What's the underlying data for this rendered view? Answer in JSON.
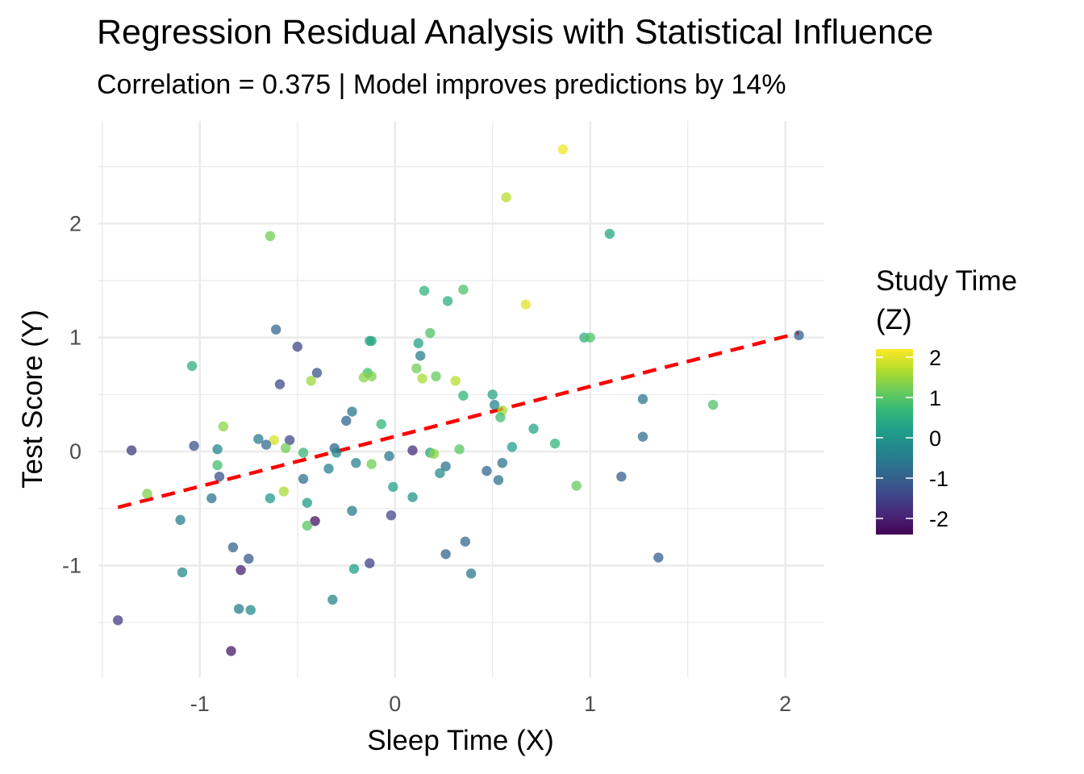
{
  "chart_data": {
    "type": "scatter",
    "title": "Regression Residual Analysis with Statistical Influence",
    "subtitle": "Correlation = 0.375 | Model improves predictions by 14%",
    "xlabel": "Sleep Time (X)",
    "ylabel": "Test Score (Y)",
    "xlim": [
      -1.52,
      2.2
    ],
    "ylim": [
      -1.98,
      2.9
    ],
    "x_ticks": [
      -1,
      0,
      1,
      2
    ],
    "x_tick_labels": [
      "-1",
      "0",
      "1",
      "2"
    ],
    "y_ticks": [
      -1,
      0,
      1,
      2
    ],
    "y_tick_labels": [
      "-1",
      "0",
      "1",
      "2"
    ],
    "grid": true,
    "legend": {
      "title_lines": [
        "Study Time",
        "(Z)"
      ],
      "placement": "right",
      "type": "colorbar",
      "range": [
        -2.4,
        2.2
      ],
      "ticks": [
        2,
        1,
        0,
        -1,
        -2
      ],
      "tick_labels": [
        "2",
        "1",
        "0",
        "-1",
        "-2"
      ],
      "colors": [
        "#440154",
        "#482878",
        "#3e4a89",
        "#31688e",
        "#26828e",
        "#1f9e89",
        "#35b779",
        "#6dcd59",
        "#b4de2c",
        "#fde725"
      ]
    },
    "regression_line": {
      "color": "#ff0000",
      "style": "dashed",
      "x": [
        -1.42,
        2.07
      ],
      "y": [
        -0.49,
        1.04
      ]
    },
    "points": [
      {
        "x": 0.86,
        "y": 2.65,
        "z": 2.1
      },
      {
        "x": 0.57,
        "y": 2.23,
        "z": 1.7
      },
      {
        "x": 1.1,
        "y": 1.91,
        "z": 0.3
      },
      {
        "x": -0.64,
        "y": 1.89,
        "z": 1.2
      },
      {
        "x": 0.15,
        "y": 1.41,
        "z": 0.6
      },
      {
        "x": 0.35,
        "y": 1.42,
        "z": 0.9
      },
      {
        "x": 0.27,
        "y": 1.32,
        "z": 0.5
      },
      {
        "x": 0.67,
        "y": 1.29,
        "z": 2.0
      },
      {
        "x": -0.61,
        "y": 1.07,
        "z": -0.9
      },
      {
        "x": 0.18,
        "y": 1.04,
        "z": 0.9
      },
      {
        "x": 0.97,
        "y": 1.0,
        "z": 0.5
      },
      {
        "x": 1.0,
        "y": 1.0,
        "z": 0.9
      },
      {
        "x": -0.12,
        "y": 0.97,
        "z": 0.4
      },
      {
        "x": -0.13,
        "y": 0.97,
        "z": 0.3
      },
      {
        "x": 0.12,
        "y": 0.95,
        "z": 0.2
      },
      {
        "x": 2.07,
        "y": 1.02,
        "z": -1.0
      },
      {
        "x": -0.5,
        "y": 0.92,
        "z": -1.4
      },
      {
        "x": 0.13,
        "y": 0.84,
        "z": -0.4
      },
      {
        "x": -1.04,
        "y": 0.75,
        "z": 0.5
      },
      {
        "x": 0.11,
        "y": 0.73,
        "z": 1.2
      },
      {
        "x": -0.4,
        "y": 0.69,
        "z": -1.2
      },
      {
        "x": -0.14,
        "y": 0.69,
        "z": 0.8
      },
      {
        "x": 0.21,
        "y": 0.66,
        "z": 1.1
      },
      {
        "x": -0.12,
        "y": 0.66,
        "z": 1.3
      },
      {
        "x": -0.16,
        "y": 0.65,
        "z": 1.4
      },
      {
        "x": 0.14,
        "y": 0.64,
        "z": 1.6
      },
      {
        "x": -0.43,
        "y": 0.62,
        "z": 1.5
      },
      {
        "x": 0.31,
        "y": 0.62,
        "z": 1.7
      },
      {
        "x": -0.59,
        "y": 0.59,
        "z": -1.4
      },
      {
        "x": 0.5,
        "y": 0.5,
        "z": 0.3
      },
      {
        "x": 0.35,
        "y": 0.49,
        "z": 0.6
      },
      {
        "x": 1.27,
        "y": 0.46,
        "z": -0.6
      },
      {
        "x": 1.63,
        "y": 0.41,
        "z": 0.9
      },
      {
        "x": 0.51,
        "y": 0.41,
        "z": -0.3
      },
      {
        "x": 0.55,
        "y": 0.36,
        "z": 1.6
      },
      {
        "x": -0.22,
        "y": 0.35,
        "z": -0.6
      },
      {
        "x": 0.54,
        "y": 0.3,
        "z": 0.8
      },
      {
        "x": -0.25,
        "y": 0.27,
        "z": -0.9
      },
      {
        "x": -0.07,
        "y": 0.24,
        "z": 0.6
      },
      {
        "x": -0.88,
        "y": 0.22,
        "z": 1.4
      },
      {
        "x": 0.71,
        "y": 0.2,
        "z": 0.3
      },
      {
        "x": 1.27,
        "y": 0.13,
        "z": -0.7
      },
      {
        "x": -0.7,
        "y": 0.11,
        "z": -0.5
      },
      {
        "x": -0.62,
        "y": 0.1,
        "z": 1.9
      },
      {
        "x": -0.54,
        "y": 0.1,
        "z": -1.4
      },
      {
        "x": 0.82,
        "y": 0.07,
        "z": 0.6
      },
      {
        "x": -0.66,
        "y": 0.06,
        "z": -0.8
      },
      {
        "x": -1.03,
        "y": 0.05,
        "z": -1.2
      },
      {
        "x": 0.6,
        "y": 0.04,
        "z": 0.2
      },
      {
        "x": -0.31,
        "y": 0.03,
        "z": -0.9
      },
      {
        "x": -0.56,
        "y": 0.03,
        "z": 1.2
      },
      {
        "x": -0.91,
        "y": 0.02,
        "z": -0.3
      },
      {
        "x": 0.33,
        "y": 0.02,
        "z": 1.0
      },
      {
        "x": -1.35,
        "y": 0.01,
        "z": -1.6
      },
      {
        "x": 0.09,
        "y": 0.01,
        "z": -1.8
      },
      {
        "x": -0.47,
        "y": -0.01,
        "z": 0.7
      },
      {
        "x": -0.3,
        "y": -0.01,
        "z": -0.3
      },
      {
        "x": 0.18,
        "y": -0.01,
        "z": 0.3
      },
      {
        "x": 0.2,
        "y": -0.02,
        "z": 1.4
      },
      {
        "x": -0.03,
        "y": -0.04,
        "z": -0.6
      },
      {
        "x": 0.55,
        "y": -0.1,
        "z": -0.6
      },
      {
        "x": -0.2,
        "y": -0.1,
        "z": -0.4
      },
      {
        "x": -0.12,
        "y": -0.11,
        "z": 1.2
      },
      {
        "x": -0.91,
        "y": -0.12,
        "z": 0.8
      },
      {
        "x": 0.26,
        "y": -0.13,
        "z": -0.6
      },
      {
        "x": -0.34,
        "y": -0.15,
        "z": -0.4
      },
      {
        "x": 0.47,
        "y": -0.17,
        "z": -0.9
      },
      {
        "x": 0.23,
        "y": -0.19,
        "z": -0.2
      },
      {
        "x": 1.16,
        "y": -0.22,
        "z": -1.0
      },
      {
        "x": -0.9,
        "y": -0.22,
        "z": -1.3
      },
      {
        "x": -0.47,
        "y": -0.24,
        "z": -0.7
      },
      {
        "x": 0.53,
        "y": -0.25,
        "z": -0.7
      },
      {
        "x": 0.93,
        "y": -0.3,
        "z": 1.1
      },
      {
        "x": -0.01,
        "y": -0.31,
        "z": 0.2
      },
      {
        "x": -0.57,
        "y": -0.35,
        "z": 1.6
      },
      {
        "x": -1.27,
        "y": -0.37,
        "z": 1.3
      },
      {
        "x": 0.09,
        "y": -0.4,
        "z": 0.0
      },
      {
        "x": -0.94,
        "y": -0.41,
        "z": -0.6
      },
      {
        "x": -0.64,
        "y": -0.41,
        "z": 0.1
      },
      {
        "x": -0.45,
        "y": -0.45,
        "z": 0.1
      },
      {
        "x": -0.22,
        "y": -0.52,
        "z": -0.5
      },
      {
        "x": -0.02,
        "y": -0.56,
        "z": -1.4
      },
      {
        "x": -1.1,
        "y": -0.6,
        "z": -0.5
      },
      {
        "x": -0.41,
        "y": -0.61,
        "z": -2.2
      },
      {
        "x": -0.45,
        "y": -0.65,
        "z": 1.0
      },
      {
        "x": 0.36,
        "y": -0.79,
        "z": -0.8
      },
      {
        "x": -0.83,
        "y": -0.84,
        "z": -0.9
      },
      {
        "x": 0.26,
        "y": -0.9,
        "z": -0.9
      },
      {
        "x": -0.75,
        "y": -0.94,
        "z": -1.1
      },
      {
        "x": 1.35,
        "y": -0.93,
        "z": -1.0
      },
      {
        "x": -0.13,
        "y": -0.98,
        "z": -1.5
      },
      {
        "x": -0.21,
        "y": -1.03,
        "z": 0.2
      },
      {
        "x": -0.79,
        "y": -1.04,
        "z": -2.0
      },
      {
        "x": -1.09,
        "y": -1.06,
        "z": -0.2
      },
      {
        "x": 0.39,
        "y": -1.07,
        "z": -0.6
      },
      {
        "x": -0.32,
        "y": -1.3,
        "z": -0.3
      },
      {
        "x": -0.8,
        "y": -1.38,
        "z": -0.5
      },
      {
        "x": -0.74,
        "y": -1.39,
        "z": -0.2
      },
      {
        "x": -1.42,
        "y": -1.48,
        "z": -1.6
      },
      {
        "x": -0.84,
        "y": -1.75,
        "z": -2.1
      }
    ]
  }
}
